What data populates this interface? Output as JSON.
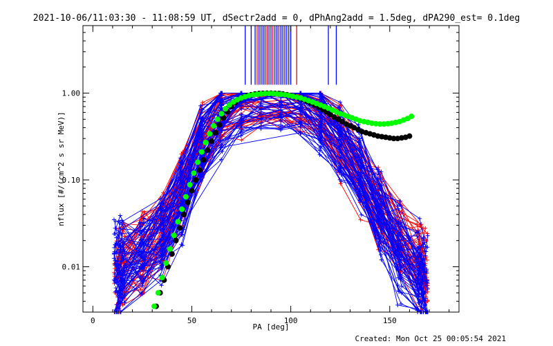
{
  "chart_data": {
    "type": "line",
    "title": "2021-10-06/11:03:30 - 11:08:59 UT, dSectr2add = 0, dPhAng2add = 1.5deg, dPA290_est=  0.1deg",
    "xlabel": "PA [deg]",
    "ylabel": "nflux [#/(cm^2 s sr MeV)]",
    "xlim": [
      -5,
      185
    ],
    "ylim": [
      0.003,
      6
    ],
    "y_scale": "log",
    "x_ticks": [
      0,
      50,
      100,
      150
    ],
    "x_tick_labels": [
      "0",
      "50",
      "100",
      "150"
    ],
    "y_ticks": [
      0.01,
      0.1,
      1.0
    ],
    "y_tick_labels": [
      "0.01",
      "0.10",
      "1.00"
    ],
    "grid": false,
    "legend": "none",
    "series": [
      {
        "color": "#0000ff",
        "marker": "+",
        "description": "many individual pitch-angle spectra",
        "x": [
          12,
          15,
          25,
          35,
          45,
          55,
          65,
          75,
          85,
          95,
          105,
          115,
          125,
          135,
          145,
          155,
          165,
          168
        ],
        "y": [
          0.008,
          0.01,
          0.013,
          0.02,
          0.06,
          0.25,
          0.55,
          0.85,
          0.95,
          0.95,
          0.85,
          0.55,
          0.28,
          0.12,
          0.04,
          0.015,
          0.008,
          0.007
        ]
      },
      {
        "color": "#ff0000",
        "marker": "+",
        "description": "many individual pitch-angle spectra",
        "x": [
          12,
          15,
          25,
          35,
          45,
          55,
          65,
          75,
          85,
          95,
          105,
          115,
          125,
          135,
          145,
          155,
          165,
          168
        ],
        "y": [
          0.01,
          0.012,
          0.015,
          0.025,
          0.08,
          0.3,
          0.6,
          0.85,
          0.95,
          0.95,
          0.85,
          0.6,
          0.3,
          0.12,
          0.05,
          0.02,
          0.012,
          0.01
        ]
      },
      {
        "color": "#000000",
        "marker": "filled-circle",
        "x": [
          32,
          34,
          36,
          38,
          40,
          42,
          44,
          46,
          48,
          50,
          52,
          54,
          56,
          58,
          60,
          62,
          64,
          66,
          68,
          70,
          72,
          74,
          76,
          78,
          80,
          82,
          84,
          86,
          88,
          90,
          92,
          94,
          96,
          98,
          100,
          102,
          104,
          106,
          108,
          110,
          112,
          114,
          116,
          118,
          120,
          122,
          124,
          126,
          128,
          130,
          132,
          134,
          136,
          138,
          140,
          142,
          144,
          146,
          148,
          150,
          152,
          154,
          156,
          158,
          160
        ],
        "y": [
          0.0035,
          0.005,
          0.007,
          0.01,
          0.014,
          0.02,
          0.028,
          0.04,
          0.055,
          0.075,
          0.1,
          0.13,
          0.17,
          0.22,
          0.28,
          0.35,
          0.43,
          0.52,
          0.61,
          0.7,
          0.78,
          0.85,
          0.9,
          0.94,
          0.96,
          0.98,
          0.99,
          0.995,
          1.0,
          1.0,
          0.995,
          0.99,
          0.98,
          0.96,
          0.94,
          0.91,
          0.88,
          0.85,
          0.81,
          0.77,
          0.73,
          0.69,
          0.65,
          0.61,
          0.57,
          0.53,
          0.5,
          0.47,
          0.44,
          0.42,
          0.4,
          0.38,
          0.36,
          0.35,
          0.34,
          0.33,
          0.32,
          0.315,
          0.31,
          0.305,
          0.3,
          0.3,
          0.305,
          0.31,
          0.32
        ]
      },
      {
        "color": "#00ff00",
        "marker": "filled-circle",
        "x": [
          31,
          33,
          35,
          37,
          39,
          41,
          43,
          45,
          47,
          49,
          51,
          53,
          55,
          57,
          59,
          61,
          63,
          65,
          67,
          69,
          71,
          73,
          75,
          77,
          79,
          81,
          83,
          85,
          87,
          89,
          91,
          93,
          95,
          97,
          99,
          101,
          103,
          105,
          107,
          109,
          111,
          113,
          115,
          117,
          119,
          121,
          123,
          125,
          127,
          129,
          131,
          133,
          135,
          137,
          139,
          141,
          143,
          145,
          147,
          149,
          151,
          153,
          155,
          157,
          159,
          161
        ],
        "y": [
          0.0035,
          0.005,
          0.0075,
          0.011,
          0.016,
          0.023,
          0.033,
          0.046,
          0.064,
          0.088,
          0.12,
          0.16,
          0.21,
          0.27,
          0.34,
          0.42,
          0.5,
          0.58,
          0.66,
          0.73,
          0.79,
          0.84,
          0.88,
          0.91,
          0.94,
          0.96,
          0.97,
          0.98,
          0.99,
          0.99,
          0.99,
          0.98,
          0.97,
          0.96,
          0.94,
          0.92,
          0.9,
          0.88,
          0.85,
          0.82,
          0.79,
          0.76,
          0.73,
          0.7,
          0.67,
          0.64,
          0.61,
          0.58,
          0.56,
          0.54,
          0.52,
          0.5,
          0.48,
          0.47,
          0.46,
          0.45,
          0.445,
          0.44,
          0.44,
          0.445,
          0.45,
          0.46,
          0.47,
          0.49,
          0.51,
          0.54
        ]
      }
    ],
    "vertical_lines": {
      "blue_x": [
        77,
        80,
        82,
        84,
        85,
        86,
        87,
        88,
        89,
        90,
        91,
        92,
        93,
        94,
        95,
        96,
        97,
        98,
        99,
        100,
        119,
        123
      ],
      "red_x": [
        83,
        88,
        91,
        94,
        103
      ]
    }
  },
  "footer": {
    "created": "Created: Mon Oct 25 00:05:54 2021"
  }
}
